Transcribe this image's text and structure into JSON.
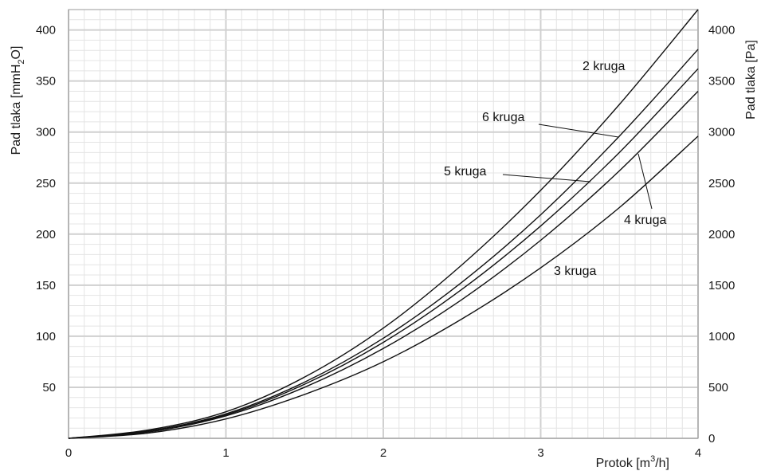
{
  "chart_data": {
    "type": "line",
    "xlabel_main": "Protok [m",
    "xlabel_sup": "3",
    "xlabel_end": "/h]",
    "ylabel_left_main": "Pad tlaka [mmH",
    "ylabel_left_sub": "2",
    "ylabel_left_end": "O]",
    "ylabel_right": "Pad tlaka [Pa]",
    "xlim": [
      0,
      4
    ],
    "ylim_left": [
      0,
      420
    ],
    "ylim_right": [
      0,
      4200
    ],
    "x_ticks": [
      "0",
      "1",
      "2",
      "3",
      "4"
    ],
    "y_ticks_left": [
      "50",
      "100",
      "150",
      "200",
      "250",
      "300",
      "350",
      "400"
    ],
    "y_ticks_right": [
      "0",
      "500",
      "1000",
      "1500",
      "2000",
      "2500",
      "3000",
      "3500",
      "4000"
    ],
    "grid": true,
    "series": [
      {
        "name": "2 kruga",
        "x": [
          0,
          0.5,
          1,
          1.5,
          2,
          2.5,
          3,
          3.5,
          4
        ],
        "values": [
          0,
          8,
          26,
          60,
          108,
          170,
          243,
          327,
          420
        ]
      },
      {
        "name": "6 kruga",
        "x": [
          0,
          0.5,
          1,
          1.5,
          2,
          2.5,
          3,
          3.5,
          4
        ],
        "values": [
          0,
          7,
          24,
          55,
          98,
          153,
          219,
          296,
          381
        ]
      },
      {
        "name": "5 kruga",
        "x": [
          0,
          0.5,
          1,
          1.5,
          2,
          2.5,
          3,
          3.5,
          4
        ],
        "values": [
          0,
          7,
          23,
          53,
          94,
          146,
          208,
          280,
          362
        ]
      },
      {
        "name": "4 kruga",
        "x": [
          0,
          0.5,
          1,
          1.5,
          2,
          2.5,
          3,
          3.5,
          4
        ],
        "values": [
          0,
          6,
          22,
          50,
          88,
          136,
          194,
          262,
          340
        ]
      },
      {
        "name": "3 kruga",
        "x": [
          0,
          0.5,
          1,
          1.5,
          2,
          2.5,
          3,
          3.5,
          4
        ],
        "values": [
          0,
          5,
          19,
          43,
          75,
          117,
          167,
          226,
          296
        ]
      }
    ]
  }
}
